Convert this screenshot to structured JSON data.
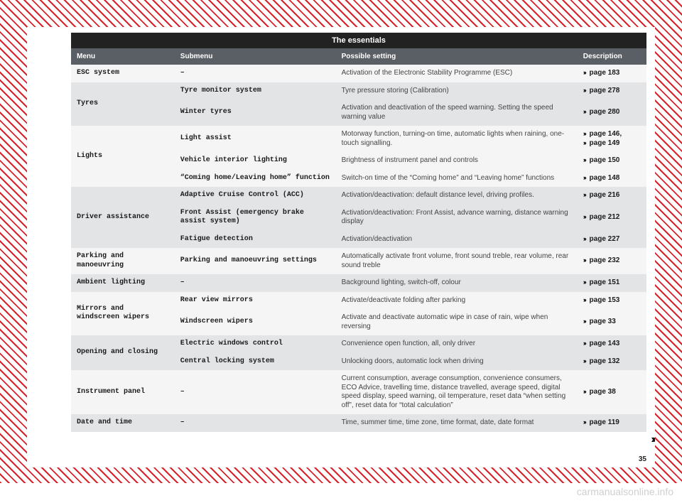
{
  "title": "The essentials",
  "headers": {
    "menu": "Menu",
    "submenu": "Submenu",
    "setting": "Possible setting",
    "desc": "Description"
  },
  "arrow": "›››",
  "continue_marker": "››",
  "page_number": "35",
  "watermark": "carmanualsonline.info",
  "rows": [
    {
      "shade": "light",
      "menu": "ESC system",
      "menu_rowspan": 1,
      "submenu": "–",
      "setting": "Activation of the Electronic Stability Programme (ESC)",
      "desc": "page 183"
    },
    {
      "shade": "dark",
      "menu": "Tyres",
      "menu_rowspan": 2,
      "submenu": "Tyre monitor system",
      "setting": "Tyre pressure storing (Calibration)",
      "desc": "page 278"
    },
    {
      "shade": "dark",
      "submenu": "Winter tyres",
      "setting": "Activation and deactivation of the speed warning. Setting the speed warning value",
      "desc": "page 280"
    },
    {
      "shade": "light",
      "menu": "Lights",
      "menu_rowspan": 3,
      "submenu": "Light assist",
      "setting": "Motorway function, turning-on time, automatic lights when raining, one-touch signalling.",
      "desc": "page 146,\npage 149",
      "multi": true
    },
    {
      "shade": "light",
      "submenu": "Vehicle interior lighting",
      "setting": "Brightness of instrument panel and controls",
      "desc": "page 150"
    },
    {
      "shade": "light",
      "submenu": "“Coming home/Leaving home” function",
      "setting": "Switch-on time of the “Coming home” and “Leaving home” functions",
      "desc": "page 148"
    },
    {
      "shade": "dark",
      "menu": "Driver assistance",
      "menu_rowspan": 3,
      "submenu": "Adaptive Cruise Control (ACC)",
      "setting": "Activation/deactivation: default distance level, driving profiles.",
      "desc": "page 216"
    },
    {
      "shade": "dark",
      "submenu": "Front Assist (emergency brake assist system)",
      "setting": "Activation/deactivation: Front Assist, advance warning, distance warning display",
      "desc": "page 212"
    },
    {
      "shade": "dark",
      "submenu": "Fatigue detection",
      "setting": "Activation/deactivation",
      "desc": "page 227"
    },
    {
      "shade": "light",
      "menu": "Parking and manoeuvring",
      "menu_rowspan": 1,
      "submenu": "Parking and manoeuvring settings",
      "setting": "Automatically activate front volume, front sound treble, rear volume, rear sound treble",
      "desc": "page 232"
    },
    {
      "shade": "dark",
      "menu": "Ambient lighting",
      "menu_rowspan": 1,
      "submenu": "–",
      "setting": "Background lighting, switch-off, colour",
      "desc": "page 151"
    },
    {
      "shade": "light",
      "menu": "Mirrors and windscreen wipers",
      "menu_rowspan": 2,
      "submenu": "Rear view mirrors",
      "setting": "Activate/deactivate folding after parking",
      "desc": "page 153"
    },
    {
      "shade": "light",
      "submenu": "Windscreen wipers",
      "setting": "Activate and deactivate automatic wipe in case of rain, wipe when reversing",
      "desc": "page 33"
    },
    {
      "shade": "dark",
      "menu": "Opening and closing",
      "menu_rowspan": 2,
      "submenu": "Electric windows control",
      "setting": "Convenience open function, all, only driver",
      "desc": "page 143"
    },
    {
      "shade": "dark",
      "submenu": "Central locking system",
      "setting": "Unlocking doors, automatic lock when driving",
      "desc": "page 132"
    },
    {
      "shade": "light",
      "menu": "Instrument panel",
      "menu_rowspan": 1,
      "submenu": "–",
      "setting": "Current consumption, average consumption, convenience consumers, ECO Advice, travelling time, distance travelled, average speed, digital speed display, speed warning, oil temperature, reset data “when setting off”, reset data for “total calculation”",
      "desc": "page 38"
    },
    {
      "shade": "dark",
      "menu": "Date and time",
      "menu_rowspan": 1,
      "submenu": "–",
      "setting": "Time, summer time, time zone, time format, date, date format",
      "desc": "page 119"
    }
  ]
}
